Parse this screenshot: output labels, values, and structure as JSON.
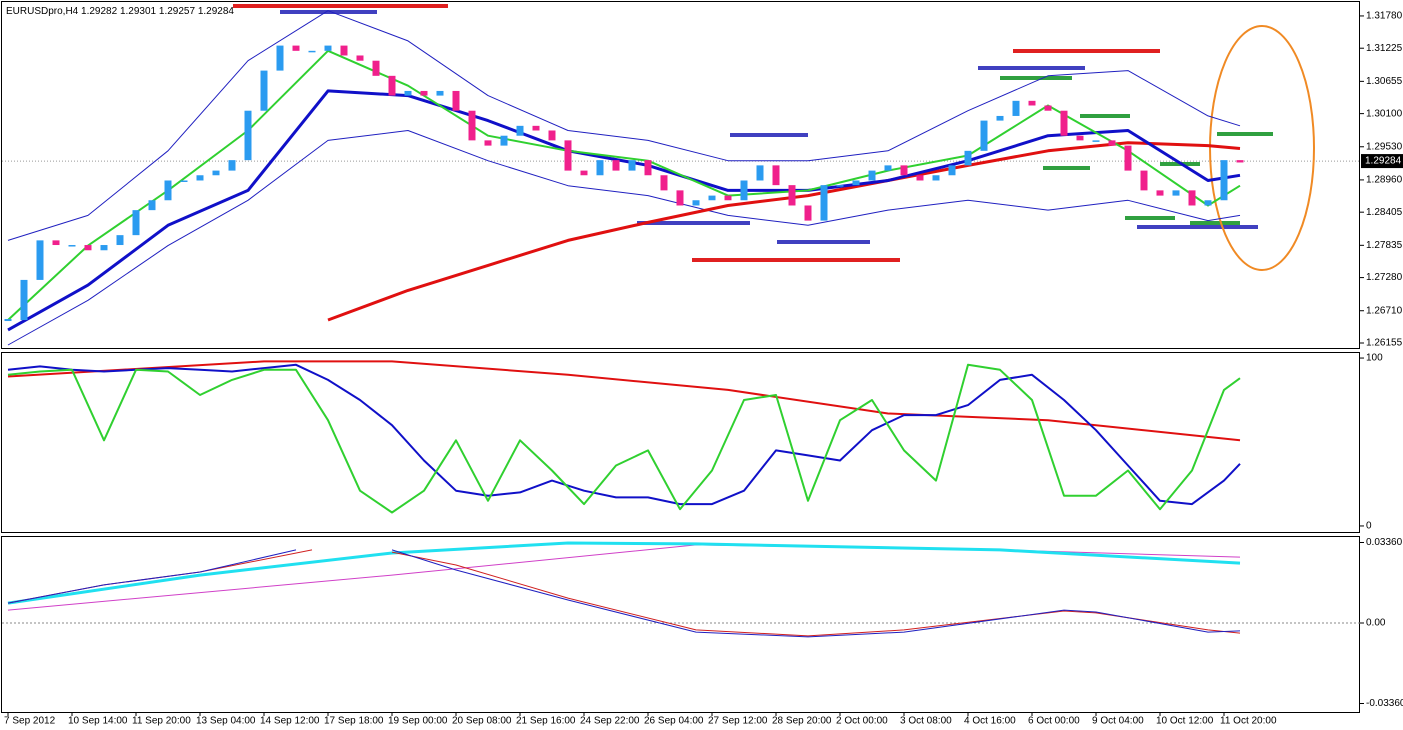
{
  "chart_data": [
    {
      "type": "candlestick",
      "title": "EURUSDpro,H4",
      "ohlc": [
        1.29282,
        1.29301,
        1.29257,
        1.29284
      ],
      "last_price": 1.29284,
      "up_color": "#2b9bf0",
      "down_color": "#f0208c",
      "xlim": [
        -0.5,
        84.5
      ],
      "ylim": [
        1.26069,
        1.32037
      ],
      "yticks": [
        {
          "value": 1.3178,
          "label": "1.31780"
        },
        1.31225,
        1.30655,
        {
          "value": 1.301,
          "label": "1.30100"
        },
        {
          "value": 1.2953,
          "label": "1.29530"
        },
        {
          "value": 1.2896,
          "label": "1.28960"
        },
        1.28405,
        1.27835,
        {
          "value": 1.2728,
          "label": "1.27280"
        },
        {
          "value": 1.2671,
          "label": "1.26710"
        },
        1.26155
      ],
      "values": [
        1.2655,
        1.2724,
        1.2792,
        1.2784,
        1.2784,
        1.2775,
        1.2784,
        1.2801,
        1.2844,
        1.2861,
        1.2895,
        1.2895,
        1.2904,
        1.2912,
        1.293,
        1.3015,
        1.3084,
        1.3127,
        1.3118,
        1.3118,
        1.3127,
        1.311,
        1.3101,
        1.3075,
        1.3041,
        1.3049,
        1.3041,
        1.3049,
        1.3015,
        1.2964,
        1.2955,
        1.2972,
        1.2989,
        1.2981,
        1.2964,
        1.2912,
        1.2904,
        1.293,
        1.2912,
        1.293,
        1.2904,
        1.2878,
        1.2852,
        1.2861,
        1.2869,
        1.2861,
        1.2895,
        1.2921,
        1.2887,
        1.2852,
        1.2826,
        1.2887,
        1.2887,
        1.2895,
        1.2912,
        1.2921,
        1.2904,
        1.2895,
        1.2904,
        1.2921,
        1.2946,
        1.2998,
        1.3006,
        1.3032,
        1.3024,
        1.3015,
        1.2972,
        1.2964,
        1.2964,
        1.2955,
        1.2912,
        1.2878,
        1.2869,
        1.2878,
        1.2852,
        1.2861,
        1.293,
        1.2926
      ],
      "series": [
        {
          "color": "#2020c0",
          "width": 1,
          "x": [
            0,
            5,
            10,
            15,
            20,
            25,
            30,
            35,
            40,
            45,
            50,
            55,
            60,
            65,
            70,
            75,
            77
          ],
          "values": [
            1.2792,
            1.2835,
            1.2946,
            1.3101,
            1.3187,
            1.3135,
            1.3041,
            1.2981,
            1.2964,
            1.2929,
            1.2929,
            1.2946,
            1.3015,
            1.3075,
            1.3084,
            1.3006,
            1.2989
          ]
        },
        {
          "color": "#2020c0",
          "width": 1,
          "x": [
            0,
            5,
            10,
            15,
            20,
            25,
            30,
            35,
            40,
            45,
            50,
            55,
            60,
            65,
            70,
            75,
            77
          ],
          "values": [
            1.2612,
            1.2689,
            1.2783,
            1.2861,
            1.2964,
            1.2981,
            1.2929,
            1.2886,
            1.2869,
            1.2835,
            1.2818,
            1.2844,
            1.2861,
            1.2844,
            1.2861,
            1.2826,
            1.2835
          ]
        },
        {
          "color": "#e01010",
          "width": 3,
          "x": [
            0,
            5,
            10,
            15,
            20,
            25,
            30,
            35,
            40,
            45,
            50,
            55,
            60,
            65,
            70,
            75,
            77
          ],
          "values": [
            null,
            null,
            null,
            null,
            1.2655,
            1.2706,
            1.2749,
            1.2792,
            1.2823,
            1.2852,
            1.2869,
            1.2895,
            1.2921,
            1.2946,
            1.296,
            1.2955,
            1.295
          ]
        },
        {
          "color": "#1010c8",
          "width": 3,
          "x": [
            0,
            5,
            10,
            15,
            20,
            25,
            30,
            35,
            40,
            45,
            50,
            55,
            60,
            65,
            70,
            75,
            77
          ],
          "values": [
            1.2638,
            1.2715,
            1.2818,
            1.2878,
            1.3049,
            1.3041,
            1.2998,
            1.2946,
            1.2921,
            1.2878,
            1.2878,
            1.2895,
            1.2929,
            1.2972,
            1.2981,
            1.2895,
            1.2904
          ]
        },
        {
          "color": "#30d030",
          "width": 2,
          "x": [
            0,
            5,
            10,
            15,
            20,
            25,
            30,
            35,
            40,
            45,
            50,
            55,
            60,
            65,
            70,
            75,
            77
          ],
          "values": [
            1.2655,
            1.2783,
            1.2878,
            1.2981,
            1.3118,
            1.3058,
            1.2972,
            1.2946,
            1.2929,
            1.2869,
            1.2878,
            1.2912,
            1.2938,
            1.3024,
            1.2946,
            1.2852,
            1.2886
          ]
        }
      ]
    },
    {
      "type": "line",
      "xlim": [
        -0.5,
        84.5
      ],
      "ylim": [
        -3.6,
        103.6
      ],
      "yticks": [
        100,
        0
      ],
      "series": [
        {
          "color": "#e01010",
          "width": 2,
          "x": [
            0,
            16,
            24,
            35,
            45,
            55,
            65,
            77
          ],
          "values": [
            89,
            98,
            98,
            90,
            81,
            67,
            63,
            51
          ]
        },
        {
          "color": "#1010c8",
          "width": 2,
          "x": [
            0,
            2,
            4,
            6,
            8,
            10,
            12,
            14,
            16,
            18,
            20,
            22,
            24,
            26,
            28,
            30,
            32,
            34,
            36,
            38,
            40,
            42,
            44,
            46,
            48,
            50,
            52,
            54,
            56,
            58,
            60,
            62,
            64,
            66,
            68,
            70,
            72,
            74,
            76,
            77
          ],
          "values": [
            93,
            95,
            93,
            92,
            93,
            94,
            93,
            92,
            94,
            96,
            87,
            75,
            60,
            39,
            21,
            18,
            20,
            27,
            21,
            17,
            17,
            13,
            13,
            21,
            45,
            42,
            39,
            57,
            66,
            66,
            72,
            87,
            90,
            75,
            57,
            36,
            15,
            13,
            27,
            37
          ]
        },
        {
          "color": "#30d030",
          "width": 2,
          "x": [
            0,
            2,
            4,
            6,
            8,
            10,
            12,
            14,
            16,
            18,
            20,
            22,
            24,
            26,
            28,
            30,
            32,
            34,
            36,
            38,
            40,
            42,
            44,
            46,
            48,
            50,
            52,
            54,
            56,
            58,
            60,
            62,
            64,
            66,
            68,
            70,
            72,
            74,
            76,
            77
          ],
          "values": [
            90,
            92,
            93,
            51,
            93,
            92,
            78,
            87,
            93,
            93,
            63,
            21,
            8,
            21,
            51,
            15,
            51,
            33,
            13,
            36,
            45,
            10,
            33,
            75,
            78,
            15,
            63,
            75,
            45,
            27,
            96,
            93,
            75,
            18,
            18,
            33,
            10,
            33,
            81,
            88
          ]
        }
      ]
    },
    {
      "type": "line",
      "xlim": [
        -0.5,
        84.5
      ],
      "ylim": [
        -0.03715,
        0.03631
      ],
      "yticks": [
        {
          "value": 0.0336,
          "label": "0.03360"
        },
        {
          "value": 0,
          "label": "0.00"
        },
        {
          "value": -0.0336,
          "label": "-0.03360"
        }
      ],
      "xticks": [
        {
          "value": 0,
          "label": "7 Sep 2012"
        },
        {
          "value": 4,
          "label": "10 Sep 14:00"
        },
        {
          "value": 8,
          "label": "11 Sep 20:00"
        },
        {
          "value": 12,
          "label": "13 Sep 04:00"
        },
        {
          "value": 16,
          "label": "14 Sep 12:00"
        },
        {
          "value": 20,
          "label": "17 Sep 18:00"
        },
        {
          "value": 24,
          "label": "19 Sep 00:00"
        },
        {
          "value": 28,
          "label": "20 Sep 08:00"
        },
        {
          "value": 32,
          "label": "21 Sep 16:00"
        },
        {
          "value": 36,
          "label": "24 Sep 22:00"
        },
        {
          "value": 40,
          "label": "26 Sep 04:00"
        },
        {
          "value": 44,
          "label": "27 Sep 12:00"
        },
        {
          "value": 48,
          "label": "28 Sep 20:00"
        },
        {
          "value": 52,
          "label": "2 Oct 00:00"
        },
        {
          "value": 56,
          "label": "3 Oct 08:00"
        },
        {
          "value": 60,
          "label": "4 Oct 16:00"
        },
        {
          "value": 64,
          "label": "6 Oct 00:00"
        },
        {
          "value": 68,
          "label": "9 Oct 04:00"
        },
        {
          "value": 72,
          "label": "10 Oct 12:00"
        },
        {
          "value": 76,
          "label": "11 Oct 20:00"
        }
      ],
      "series": [
        {
          "color": "#d040c8",
          "width": 1,
          "x": [
            0,
            24,
            43,
            62,
            77
          ],
          "values": [
            0.0054,
            0.02,
            0.0326,
            0.0305,
            0.0275
          ]
        },
        {
          "color": "#20e0f0",
          "width": 3,
          "x": [
            0,
            12,
            24,
            35,
            43,
            62,
            77
          ],
          "values": [
            0.0083,
            0.02,
            0.0292,
            0.0334,
            0.033,
            0.0305,
            0.025
          ]
        },
        {
          "color": "#d02020",
          "width": 1,
          "x": [
            0,
            6,
            12,
            19,
            21,
            24,
            28,
            35,
            43,
            50,
            56,
            66,
            68,
            75,
            77
          ],
          "values": [
            0.0083,
            0.0159,
            0.0213,
            0.0305,
            null,
            0.0296,
            0.0242,
            0.0104,
            -0.0029,
            -0.0054,
            -0.0029,
            0.005,
            0.0042,
            -0.0029,
            -0.0042
          ]
        },
        {
          "color": "#2020c0",
          "width": 1,
          "x": [
            0,
            6,
            12,
            18,
            21,
            24,
            28,
            35,
            43,
            50,
            56,
            66,
            68,
            75,
            77
          ],
          "values": [
            0.0083,
            0.0159,
            0.0213,
            0.0305,
            null,
            0.0305,
            0.0221,
            0.0096,
            -0.0038,
            -0.0058,
            -0.0038,
            0.0054,
            0.0046,
            -0.0038,
            -0.0033
          ]
        }
      ]
    }
  ]
}
